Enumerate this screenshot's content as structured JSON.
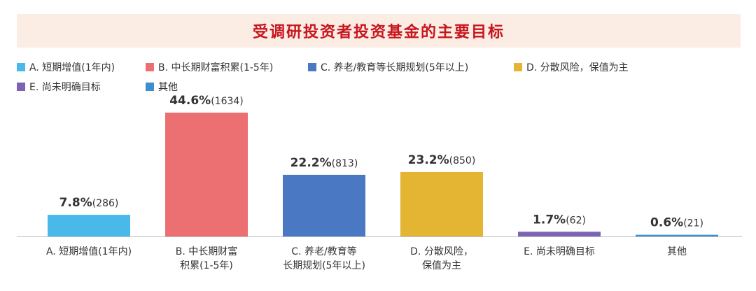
{
  "title": "受调研投资者投资基金的主要目标",
  "chart_data": {
    "type": "bar",
    "title": "受调研投资者投资基金的主要目标",
    "categories": [
      {
        "legend": "A. 短期增值(1年内)",
        "label_lines": [
          "A. 短期增值(1年内)"
        ],
        "percent_label": "7.8%",
        "count_label": "(286)",
        "value": 7.8,
        "count": 286,
        "color": "#49b9ea"
      },
      {
        "legend": "B. 中长期财富积累(1-5年)",
        "label_lines": [
          "B. 中长期财富",
          "积累(1-5年)"
        ],
        "percent_label": "44.6%",
        "count_label": "(1634)",
        "value": 44.6,
        "count": 1634,
        "color": "#ec7071"
      },
      {
        "legend": "C. 养老/教育等长期规划(5年以上)",
        "label_lines": [
          "C. 养老/教育等",
          "长期规划(5年以上)"
        ],
        "percent_label": "22.2%",
        "count_label": "(813)",
        "value": 22.2,
        "count": 813,
        "color": "#4a78c2"
      },
      {
        "legend": "D. 分散风险，保值为主",
        "label_lines": [
          "D. 分散风险，",
          "保值为主"
        ],
        "percent_label": "23.2%",
        "count_label": "(850)",
        "value": 23.2,
        "count": 850,
        "color": "#e3b532"
      },
      {
        "legend": "E. 尚未明确目标",
        "label_lines": [
          "E. 尚未明确目标"
        ],
        "percent_label": "1.7%",
        "count_label": "(62)",
        "value": 1.7,
        "count": 62,
        "color": "#7b64b4"
      },
      {
        "legend": "其他",
        "label_lines": [
          "其他"
        ],
        "percent_label": "0.6%",
        "count_label": "(21)",
        "value": 0.6,
        "count": 21,
        "color": "#3e8fd0"
      }
    ],
    "unit": "%",
    "ylim": [
      0,
      44.6
    ],
    "grid": false,
    "legend_position": "top"
  }
}
